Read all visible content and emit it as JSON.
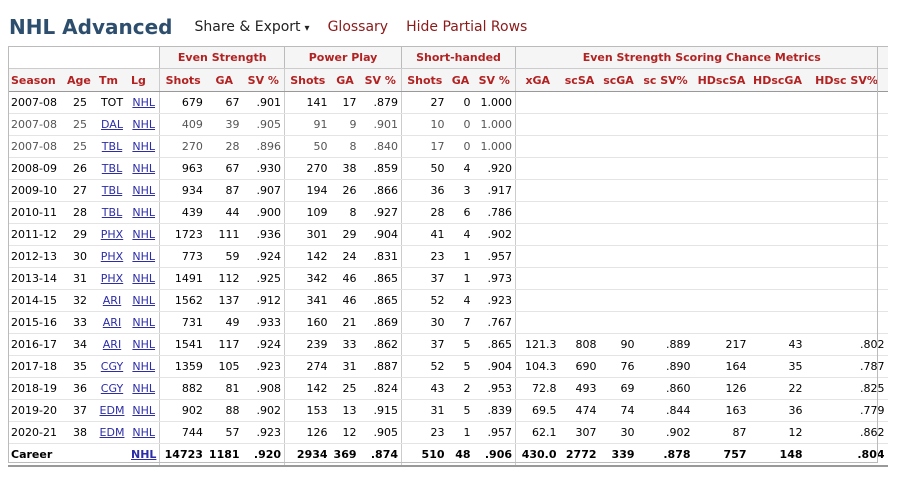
{
  "header": {
    "title": "NHL Advanced",
    "share_export": "Share & Export",
    "caret": "▾",
    "glossary": "Glossary",
    "hide_partial": "Hide Partial Rows"
  },
  "groups": {
    "even_strength": "Even Strength",
    "power_play": "Power Play",
    "short_handed": "Short-handed",
    "scoring_chance": "Even Strength Scoring Chance Metrics"
  },
  "columns": [
    "Season",
    "Age",
    "Tm",
    "Lg",
    "Shots",
    "GA",
    "SV %",
    "Shots",
    "GA",
    "SV %",
    "Shots",
    "GA",
    "SV %",
    "xGA",
    "scSA",
    "scGA",
    "sc SV%",
    "HDscSA",
    "HDscGA",
    "HDsc SV%"
  ],
  "rows": [
    {
      "season": "2007-08",
      "age": "25",
      "tm": "TOT",
      "tm_link": false,
      "lg": "NHL",
      "es_shots": "679",
      "es_ga": "67",
      "es_sv": ".901",
      "pp_shots": "141",
      "pp_ga": "17",
      "pp_sv": ".879",
      "sh_shots": "27",
      "sh_ga": "0",
      "sh_sv": "1.000",
      "xga": "",
      "scsa": "",
      "scga": "",
      "scsv": "",
      "hdscsa": "",
      "hdscga": "",
      "hdscsv": "",
      "partial": false
    },
    {
      "season": "2007-08",
      "age": "25",
      "tm": "DAL",
      "tm_link": true,
      "lg": "NHL",
      "es_shots": "409",
      "es_ga": "39",
      "es_sv": ".905",
      "pp_shots": "91",
      "pp_ga": "9",
      "pp_sv": ".901",
      "sh_shots": "10",
      "sh_ga": "0",
      "sh_sv": "1.000",
      "xga": "",
      "scsa": "",
      "scga": "",
      "scsv": "",
      "hdscsa": "",
      "hdscga": "",
      "hdscsv": "",
      "partial": true
    },
    {
      "season": "2007-08",
      "age": "25",
      "tm": "TBL",
      "tm_link": true,
      "lg": "NHL",
      "es_shots": "270",
      "es_ga": "28",
      "es_sv": ".896",
      "pp_shots": "50",
      "pp_ga": "8",
      "pp_sv": ".840",
      "sh_shots": "17",
      "sh_ga": "0",
      "sh_sv": "1.000",
      "xga": "",
      "scsa": "",
      "scga": "",
      "scsv": "",
      "hdscsa": "",
      "hdscga": "",
      "hdscsv": "",
      "partial": true
    },
    {
      "season": "2008-09",
      "age": "26",
      "tm": "TBL",
      "tm_link": true,
      "lg": "NHL",
      "es_shots": "963",
      "es_ga": "67",
      "es_sv": ".930",
      "pp_shots": "270",
      "pp_ga": "38",
      "pp_sv": ".859",
      "sh_shots": "50",
      "sh_ga": "4",
      "sh_sv": ".920",
      "xga": "",
      "scsa": "",
      "scga": "",
      "scsv": "",
      "hdscsa": "",
      "hdscga": "",
      "hdscsv": "",
      "partial": false
    },
    {
      "season": "2009-10",
      "age": "27",
      "tm": "TBL",
      "tm_link": true,
      "lg": "NHL",
      "es_shots": "934",
      "es_ga": "87",
      "es_sv": ".907",
      "pp_shots": "194",
      "pp_ga": "26",
      "pp_sv": ".866",
      "sh_shots": "36",
      "sh_ga": "3",
      "sh_sv": ".917",
      "xga": "",
      "scsa": "",
      "scga": "",
      "scsv": "",
      "hdscsa": "",
      "hdscga": "",
      "hdscsv": "",
      "partial": false
    },
    {
      "season": "2010-11",
      "age": "28",
      "tm": "TBL",
      "tm_link": true,
      "lg": "NHL",
      "es_shots": "439",
      "es_ga": "44",
      "es_sv": ".900",
      "pp_shots": "109",
      "pp_ga": "8",
      "pp_sv": ".927",
      "sh_shots": "28",
      "sh_ga": "6",
      "sh_sv": ".786",
      "xga": "",
      "scsa": "",
      "scga": "",
      "scsv": "",
      "hdscsa": "",
      "hdscga": "",
      "hdscsv": "",
      "partial": false
    },
    {
      "season": "2011-12",
      "age": "29",
      "tm": "PHX",
      "tm_link": true,
      "lg": "NHL",
      "es_shots": "1723",
      "es_ga": "111",
      "es_sv": ".936",
      "pp_shots": "301",
      "pp_ga": "29",
      "pp_sv": ".904",
      "sh_shots": "41",
      "sh_ga": "4",
      "sh_sv": ".902",
      "xga": "",
      "scsa": "",
      "scga": "",
      "scsv": "",
      "hdscsa": "",
      "hdscga": "",
      "hdscsv": "",
      "partial": false
    },
    {
      "season": "2012-13",
      "age": "30",
      "tm": "PHX",
      "tm_link": true,
      "lg": "NHL",
      "es_shots": "773",
      "es_ga": "59",
      "es_sv": ".924",
      "pp_shots": "142",
      "pp_ga": "24",
      "pp_sv": ".831",
      "sh_shots": "23",
      "sh_ga": "1",
      "sh_sv": ".957",
      "xga": "",
      "scsa": "",
      "scga": "",
      "scsv": "",
      "hdscsa": "",
      "hdscga": "",
      "hdscsv": "",
      "partial": false
    },
    {
      "season": "2013-14",
      "age": "31",
      "tm": "PHX",
      "tm_link": true,
      "lg": "NHL",
      "es_shots": "1491",
      "es_ga": "112",
      "es_sv": ".925",
      "pp_shots": "342",
      "pp_ga": "46",
      "pp_sv": ".865",
      "sh_shots": "37",
      "sh_ga": "1",
      "sh_sv": ".973",
      "xga": "",
      "scsa": "",
      "scga": "",
      "scsv": "",
      "hdscsa": "",
      "hdscga": "",
      "hdscsv": "",
      "partial": false
    },
    {
      "season": "2014-15",
      "age": "32",
      "tm": "ARI",
      "tm_link": true,
      "lg": "NHL",
      "es_shots": "1562",
      "es_ga": "137",
      "es_sv": ".912",
      "pp_shots": "341",
      "pp_ga": "46",
      "pp_sv": ".865",
      "sh_shots": "52",
      "sh_ga": "4",
      "sh_sv": ".923",
      "xga": "",
      "scsa": "",
      "scga": "",
      "scsv": "",
      "hdscsa": "",
      "hdscga": "",
      "hdscsv": "",
      "partial": false
    },
    {
      "season": "2015-16",
      "age": "33",
      "tm": "ARI",
      "tm_link": true,
      "lg": "NHL",
      "es_shots": "731",
      "es_ga": "49",
      "es_sv": ".933",
      "pp_shots": "160",
      "pp_ga": "21",
      "pp_sv": ".869",
      "sh_shots": "30",
      "sh_ga": "7",
      "sh_sv": ".767",
      "xga": "",
      "scsa": "",
      "scga": "",
      "scsv": "",
      "hdscsa": "",
      "hdscga": "",
      "hdscsv": "",
      "partial": false
    },
    {
      "season": "2016-17",
      "age": "34",
      "tm": "ARI",
      "tm_link": true,
      "lg": "NHL",
      "es_shots": "1541",
      "es_ga": "117",
      "es_sv": ".924",
      "pp_shots": "239",
      "pp_ga": "33",
      "pp_sv": ".862",
      "sh_shots": "37",
      "sh_ga": "5",
      "sh_sv": ".865",
      "xga": "121.3",
      "scsa": "808",
      "scga": "90",
      "scsv": ".889",
      "hdscsa": "217",
      "hdscga": "43",
      "hdscsv": ".802",
      "partial": false
    },
    {
      "season": "2017-18",
      "age": "35",
      "tm": "CGY",
      "tm_link": true,
      "lg": "NHL",
      "es_shots": "1359",
      "es_ga": "105",
      "es_sv": ".923",
      "pp_shots": "274",
      "pp_ga": "31",
      "pp_sv": ".887",
      "sh_shots": "52",
      "sh_ga": "5",
      "sh_sv": ".904",
      "xga": "104.3",
      "scsa": "690",
      "scga": "76",
      "scsv": ".890",
      "hdscsa": "164",
      "hdscga": "35",
      "hdscsv": ".787",
      "partial": false
    },
    {
      "season": "2018-19",
      "age": "36",
      "tm": "CGY",
      "tm_link": true,
      "lg": "NHL",
      "es_shots": "882",
      "es_ga": "81",
      "es_sv": ".908",
      "pp_shots": "142",
      "pp_ga": "25",
      "pp_sv": ".824",
      "sh_shots": "43",
      "sh_ga": "2",
      "sh_sv": ".953",
      "xga": "72.8",
      "scsa": "493",
      "scga": "69",
      "scsv": ".860",
      "hdscsa": "126",
      "hdscga": "22",
      "hdscsv": ".825",
      "partial": false
    },
    {
      "season": "2019-20",
      "age": "37",
      "tm": "EDM",
      "tm_link": true,
      "lg": "NHL",
      "es_shots": "902",
      "es_ga": "88",
      "es_sv": ".902",
      "pp_shots": "153",
      "pp_ga": "13",
      "pp_sv": ".915",
      "sh_shots": "31",
      "sh_ga": "5",
      "sh_sv": ".839",
      "xga": "69.5",
      "scsa": "474",
      "scga": "74",
      "scsv": ".844",
      "hdscsa": "163",
      "hdscga": "36",
      "hdscsv": ".779",
      "partial": false
    },
    {
      "season": "2020-21",
      "age": "38",
      "tm": "EDM",
      "tm_link": true,
      "lg": "NHL",
      "es_shots": "744",
      "es_ga": "57",
      "es_sv": ".923",
      "pp_shots": "126",
      "pp_ga": "12",
      "pp_sv": ".905",
      "sh_shots": "23",
      "sh_ga": "1",
      "sh_sv": ".957",
      "xga": "62.1",
      "scsa": "307",
      "scga": "30",
      "scsv": ".902",
      "hdscsa": "87",
      "hdscga": "12",
      "hdscsv": ".862",
      "partial": false
    }
  ],
  "career": {
    "season": "Career",
    "age": "",
    "tm": "",
    "lg": "NHL",
    "es_shots": "14723",
    "es_ga": "1181",
    "es_sv": ".920",
    "pp_shots": "2934",
    "pp_ga": "369",
    "pp_sv": ".874",
    "sh_shots": "510",
    "sh_ga": "48",
    "sh_sv": ".906",
    "xga": "430.0",
    "scsa": "2772",
    "scga": "339",
    "scsv": ".878",
    "hdscsa": "757",
    "hdscga": "148",
    "hdscsv": ".804"
  }
}
